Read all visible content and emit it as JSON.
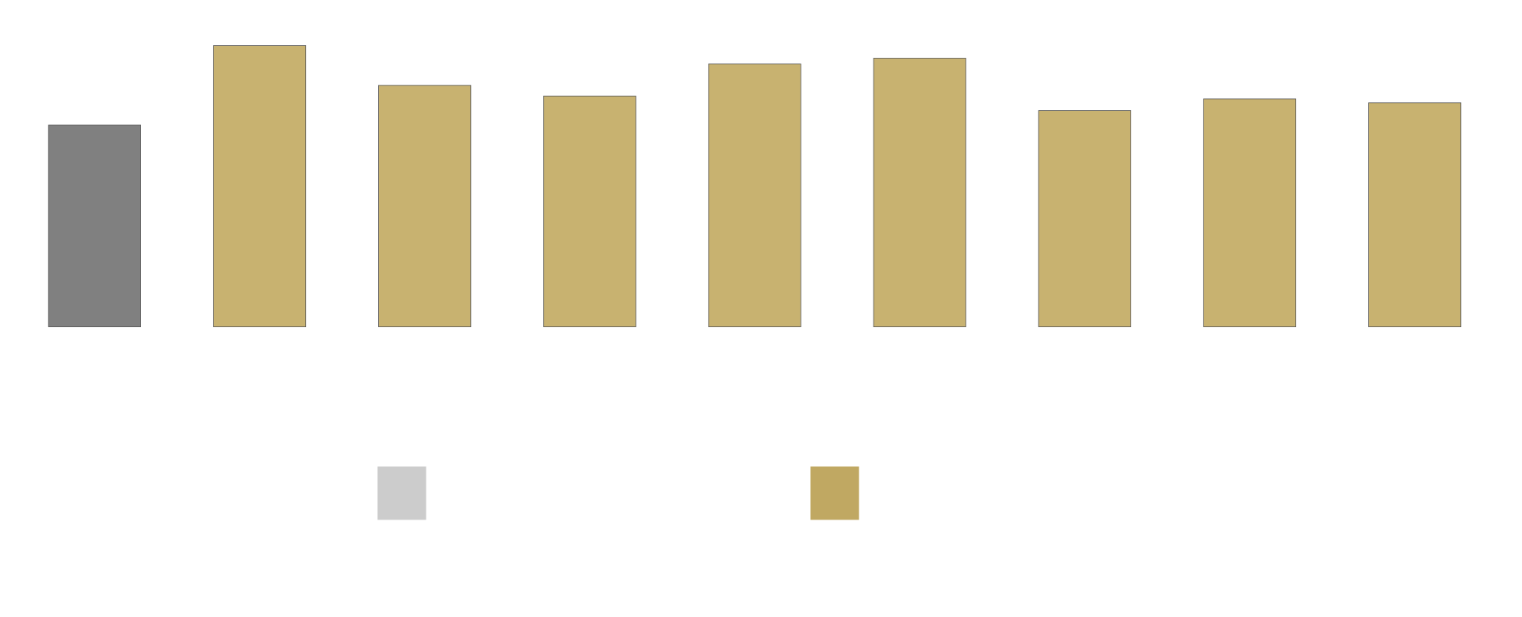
{
  "chart_data": {
    "type": "bar",
    "values": [
      208,
      290,
      249,
      238,
      271,
      277,
      223,
      235,
      231
    ],
    "colors": [
      "#808080",
      "#c8b270",
      "#c8b270",
      "#c8b270",
      "#c8b270",
      "#c8b270",
      "#c8b270",
      "#c8b270",
      "#c8b270"
    ],
    "legend": [
      {
        "color": "#cccccc"
      },
      {
        "color": "#c0a862"
      }
    ]
  }
}
